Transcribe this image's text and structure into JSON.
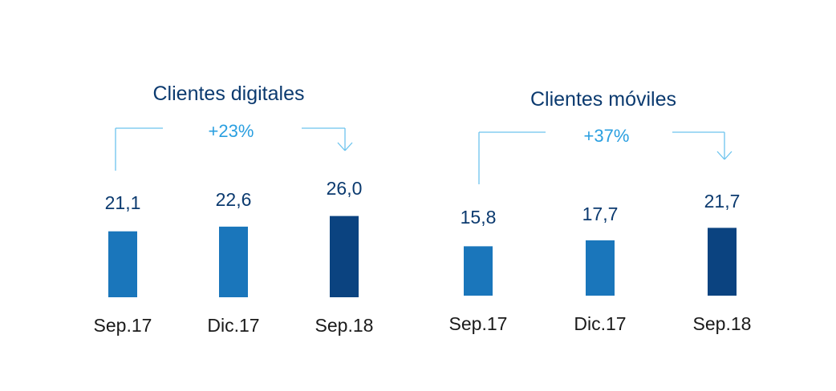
{
  "chart_data": [
    {
      "type": "bar",
      "title": "Clientes digitales",
      "growth_label": "+23%",
      "categories": [
        "Sep.17",
        "Dic.17",
        "Sep.18"
      ],
      "values": [
        21.1,
        22.6,
        26.0
      ],
      "value_labels": [
        "21,1",
        "22,6",
        "26,0"
      ],
      "colors": [
        "#1a76bb",
        "#1a76bb",
        "#0b4380"
      ]
    },
    {
      "type": "bar",
      "title": "Clientes móviles",
      "growth_label": "+37%",
      "categories": [
        "Sep.17",
        "Dic.17",
        "Sep.18"
      ],
      "values": [
        15.8,
        17.7,
        21.7
      ],
      "value_labels": [
        "15,8",
        "17,7",
        "21,7"
      ],
      "colors": [
        "#1a76bb",
        "#1a76bb",
        "#0b4380"
      ]
    }
  ],
  "colors": {
    "title": "#0b3a6f",
    "growth": "#2a9fe0",
    "bracket": "#6cc4ee",
    "category_text": "#1a1a1a"
  }
}
